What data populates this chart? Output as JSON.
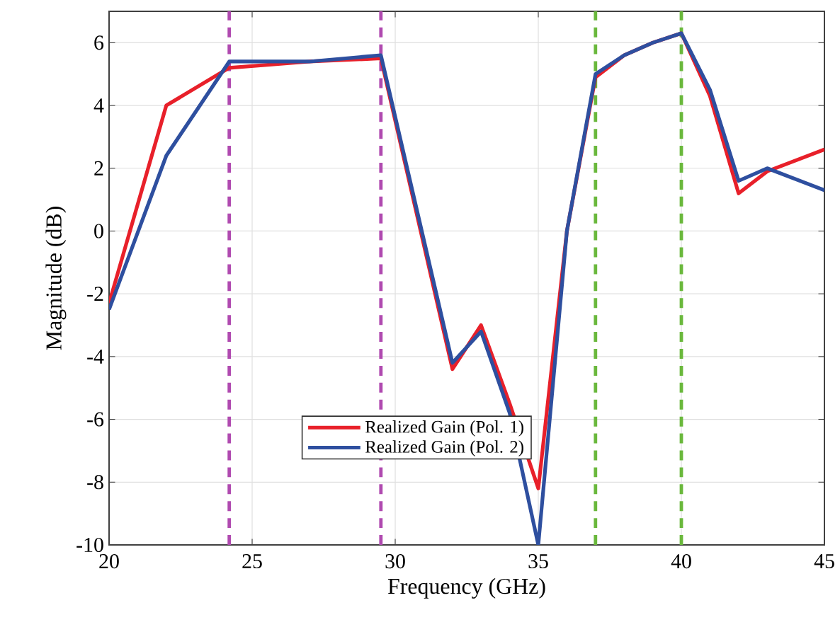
{
  "chart_data": {
    "type": "line",
    "xlabel": "Frequency (GHz)",
    "ylabel": "Magnitude (dB)",
    "xlim": [
      20,
      45
    ],
    "xticks": [
      20,
      25,
      30,
      35,
      40,
      45
    ],
    "ylim": [
      -10,
      7
    ],
    "yticks": [
      -10,
      -8,
      -6,
      -4,
      -2,
      0,
      2,
      4,
      6
    ],
    "grid": true,
    "legend": "bottom",
    "line_style": "solid",
    "marker": "none",
    "series": [
      {
        "name": "Realized Gain (Pol. 1)",
        "color": "#e8202a",
        "x": [
          20,
          22,
          24.2,
          27,
          29.5,
          32,
          33,
          34,
          35,
          36,
          37,
          38,
          39,
          40,
          41,
          42,
          43,
          45
        ],
        "values": [
          -2.3,
          4.0,
          5.2,
          5.4,
          5.5,
          -4.4,
          -3.0,
          -5.5,
          -8.2,
          0,
          4.9,
          5.6,
          6.0,
          6.3,
          4.3,
          1.2,
          1.9,
          2.6
        ]
      },
      {
        "name": "Realized Gain (Pol. 2)",
        "color": "#2e4f9f",
        "x": [
          20,
          22,
          24.2,
          27,
          29.5,
          32,
          33,
          34,
          35,
          36,
          37,
          38,
          39,
          40,
          41,
          42,
          43,
          45
        ],
        "values": [
          -2.5,
          2.4,
          5.4,
          5.4,
          5.6,
          -4.2,
          -3.2,
          -5.8,
          -10,
          0,
          5.0,
          5.6,
          6.0,
          6.3,
          4.5,
          1.6,
          2.0,
          1.3
        ]
      }
    ],
    "ref_lines": [
      {
        "axis": "x",
        "value": 24.2,
        "color": "#b04ab0",
        "line_style": "dashed"
      },
      {
        "axis": "x",
        "value": 29.5,
        "color": "#b04ab0",
        "line_style": "dashed"
      },
      {
        "axis": "x",
        "value": 37,
        "color": "#6ab83c",
        "line_style": "dashed"
      },
      {
        "axis": "x",
        "value": 40,
        "color": "#6ab83c",
        "line_style": "dashed"
      }
    ]
  }
}
